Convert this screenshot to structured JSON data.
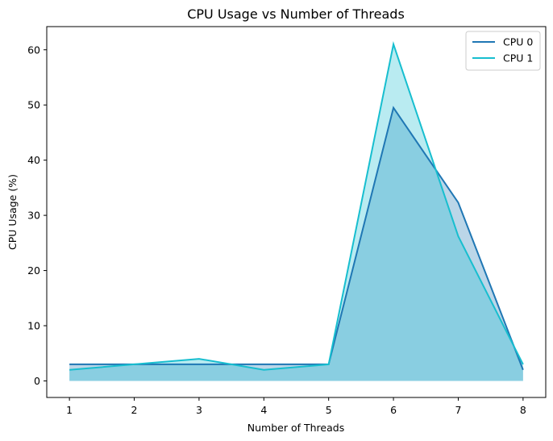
{
  "chart_data": {
    "type": "area",
    "title": "CPU Usage vs Number of Threads",
    "xlabel": "Number of Threads",
    "ylabel": "CPU Usage (%)",
    "x": [
      1,
      2,
      3,
      4,
      5,
      6,
      7,
      8
    ],
    "xticks": [
      "1",
      "2",
      "3",
      "4",
      "5",
      "6",
      "7",
      "8"
    ],
    "yticks": [
      "0",
      "10",
      "20",
      "30",
      "40",
      "50",
      "60"
    ],
    "xlim": [
      0.65,
      8.35
    ],
    "ylim": [
      -3.0,
      64.2
    ],
    "grid": false,
    "legend_position": "top-right",
    "series": [
      {
        "name": "CPU 0",
        "values": [
          3,
          3,
          3,
          3,
          3,
          49.5,
          32.3,
          2
        ],
        "color": "#1f77b4"
      },
      {
        "name": "CPU 1",
        "values": [
          2,
          3,
          4,
          2,
          3,
          61,
          26.2,
          3
        ],
        "color": "#17becf"
      }
    ]
  }
}
